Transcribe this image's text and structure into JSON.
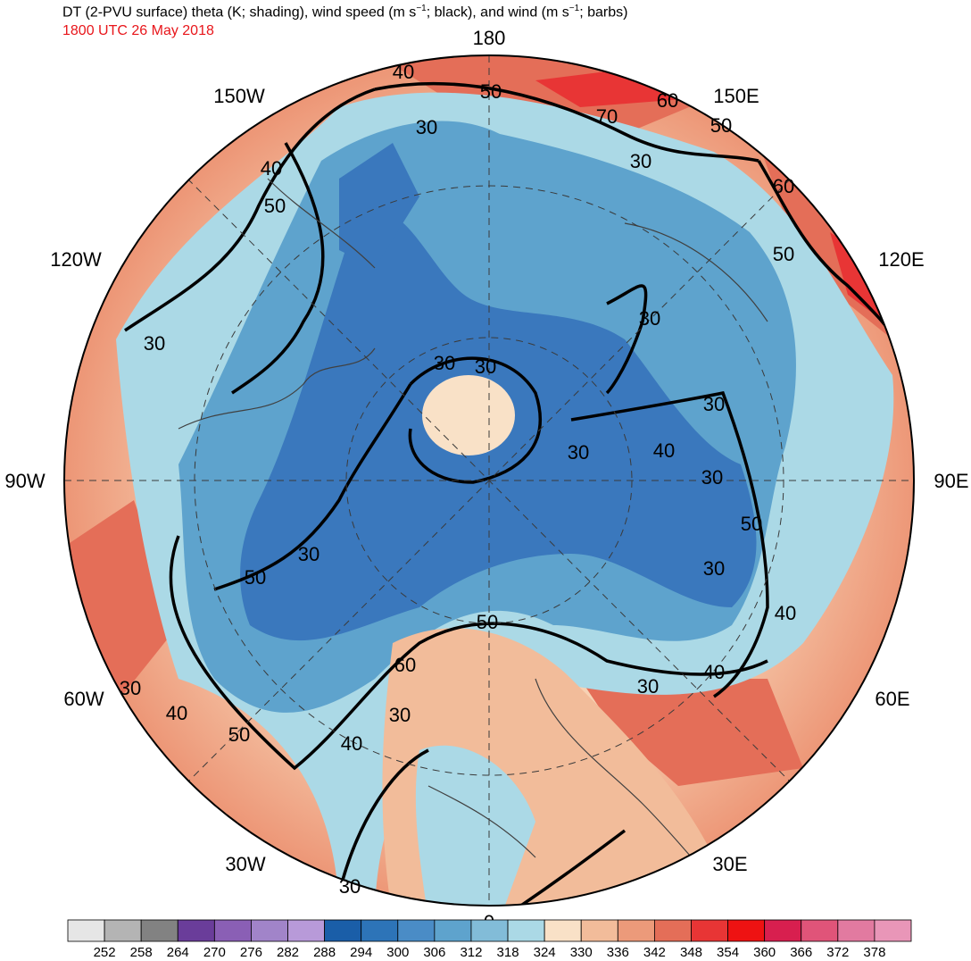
{
  "title": {
    "part1": "DT (2-PVU surface) theta (K; shading), wind speed (m s",
    "sup1": "−1",
    "part2": "; black), and wind (m s",
    "sup2": "−1",
    "part3": "; barbs)",
    "time": "1800 UTC 26 May 2018",
    "time_color": "#e8161b"
  },
  "map": {
    "projection": "north polar stereographic",
    "longitude_labels": [
      "180",
      "150E",
      "120E",
      "90E",
      "60E",
      "30E",
      "0",
      "30W",
      "60W",
      "90W",
      "120W",
      "150W"
    ],
    "contour_labels": [
      "30",
      "40",
      "50",
      "60",
      "70"
    ],
    "colors": {
      "cold_core": "#3a78bd",
      "cool": "#5da3cf",
      "pale_blue": "#abd8e6",
      "neutral": "#f7dcc0",
      "warm": "#ee9a78",
      "hot": "#e05a4c",
      "contour": "#000000",
      "coastline": "#404040"
    }
  },
  "colorbar": {
    "values": [
      "252",
      "258",
      "264",
      "270",
      "276",
      "282",
      "288",
      "294",
      "300",
      "306",
      "312",
      "318",
      "324",
      "330",
      "336",
      "342",
      "348",
      "354",
      "360",
      "366",
      "372",
      "378"
    ],
    "colors": [
      "#e6e6e6",
      "#b4b4b4",
      "#828282",
      "#6a3d9a",
      "#8a5fb5",
      "#a184c9",
      "#b89ad9",
      "#1a5ea8",
      "#2d74b8",
      "#4a8cc6",
      "#5ea3cd",
      "#82bcd8",
      "#abd9e6",
      "#f9e1c7",
      "#f2bc9a",
      "#ec9a7a",
      "#e46e58",
      "#e83535",
      "#ee1212",
      "#d81f4f",
      "#e05479",
      "#e27aa0",
      "#e996b8"
    ]
  }
}
